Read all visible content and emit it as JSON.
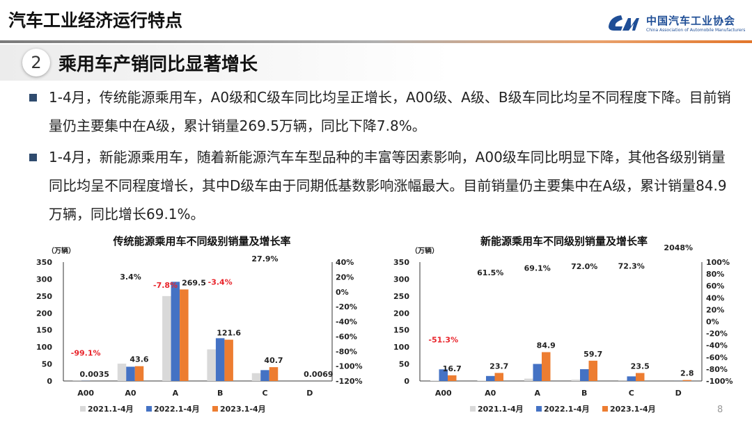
{
  "header": {
    "title": "汽车工业经济运行特点",
    "logo_cn": "中国汽车工业协会",
    "logo_en": "China Association of Automobile Manufacturers"
  },
  "section": {
    "number": "2",
    "title": "乘用车产销同比显著增长"
  },
  "bullets": [
    "1-4月，传统能源乘用车，A0级和C级车同比均呈正增长，A00级、A级、B级车同比均呈不同程度下降。目前销量仍主要集中在A级，累计销量269.5万辆，同比下降7.8%。",
    "1-4月，新能源乘用车，随着新能源汽车车型品种的丰富等因素影响，A00级车同比明显下降，其他各级别销量同比均呈不同程度增长，其中D级车由于同期低基数影响涨幅最大。目前销量仍主要集中在A级，累计销量84.9万辆，同比增长69.1%。"
  ],
  "page_number": "8",
  "colors": {
    "s2021": "#d9d9d9",
    "s2022": "#4472c4",
    "s2023": "#ed7d31",
    "negative": "#e8242b",
    "accent": "#1f4e96"
  },
  "chart_data": [
    {
      "type": "bar",
      "title": "传统能源乘用车不同级别销量及增长率",
      "ylabel": "（万辆）",
      "categories": [
        "A00",
        "A0",
        "A",
        "B",
        "C",
        "D"
      ],
      "ylim": [
        0,
        350
      ],
      "yticks": [
        "350",
        "300",
        "250",
        "200",
        "150",
        "100",
        "50",
        "0"
      ],
      "y2lim": [
        -120,
        40
      ],
      "y2ticks": [
        "40%",
        "20%",
        "0%",
        "-20%",
        "-40%",
        "-60%",
        "-80%",
        "-100%",
        "-120%"
      ],
      "series": [
        {
          "name": "2021.1-4月",
          "values": [
            0.5,
            51,
            250,
            93,
            23,
            0.01
          ]
        },
        {
          "name": "2022.1-4月",
          "values": [
            0.4,
            42,
            292,
            126,
            32,
            0.01
          ]
        },
        {
          "name": "2023.1-4月",
          "values": [
            0.0035,
            43.6,
            269.5,
            121.6,
            40.7,
            0.0069
          ]
        }
      ],
      "value_labels": [
        "0.0035",
        "43.6",
        "269.5",
        "121.6",
        "40.7",
        "0.0069"
      ],
      "growth": [
        -99.1,
        3.4,
        -7.8,
        -3.4,
        27.9,
        null
      ],
      "growth_labels": [
        "-99.1%",
        "3.4%",
        "-7.8%",
        "-3.4%",
        "27.9%",
        ""
      ],
      "legend": "bottom"
    },
    {
      "type": "bar",
      "title": "新能源乘用车不同级别销量及增长率",
      "ylabel": "（万辆）",
      "categories": [
        "A00",
        "A0",
        "A",
        "B",
        "C",
        "D"
      ],
      "ylim": [
        0,
        350
      ],
      "yticks": [
        "350",
        "300",
        "250",
        "200",
        "150",
        "100",
        "50",
        "0"
      ],
      "y2lim": [
        -100,
        100
      ],
      "y2ticks": [
        "100%",
        "80%",
        "60%",
        "40%",
        "20%",
        "0%",
        "-20%",
        "-40%",
        "-60%",
        "-80%",
        "-100%"
      ],
      "series": [
        {
          "name": "2021.1-4月",
          "values": [
            1,
            1,
            7,
            4,
            0.5,
            0
          ]
        },
        {
          "name": "2022.1-4月",
          "values": [
            34.3,
            14.7,
            50.2,
            34.7,
            13.6,
            0.13
          ]
        },
        {
          "name": "2023.1-4月",
          "values": [
            16.7,
            23.7,
            84.9,
            59.7,
            23.5,
            2.8
          ]
        }
      ],
      "value_labels": [
        "16.7",
        "23.7",
        "84.9",
        "59.7",
        "23.5",
        "2.8"
      ],
      "growth": [
        -51.3,
        61.5,
        69.1,
        72.0,
        72.3,
        2048
      ],
      "growth_labels": [
        "-51.3%",
        "61.5%",
        "69.1%",
        "72.0%",
        "72.3%",
        "2048%"
      ],
      "legend": "bottom"
    }
  ]
}
